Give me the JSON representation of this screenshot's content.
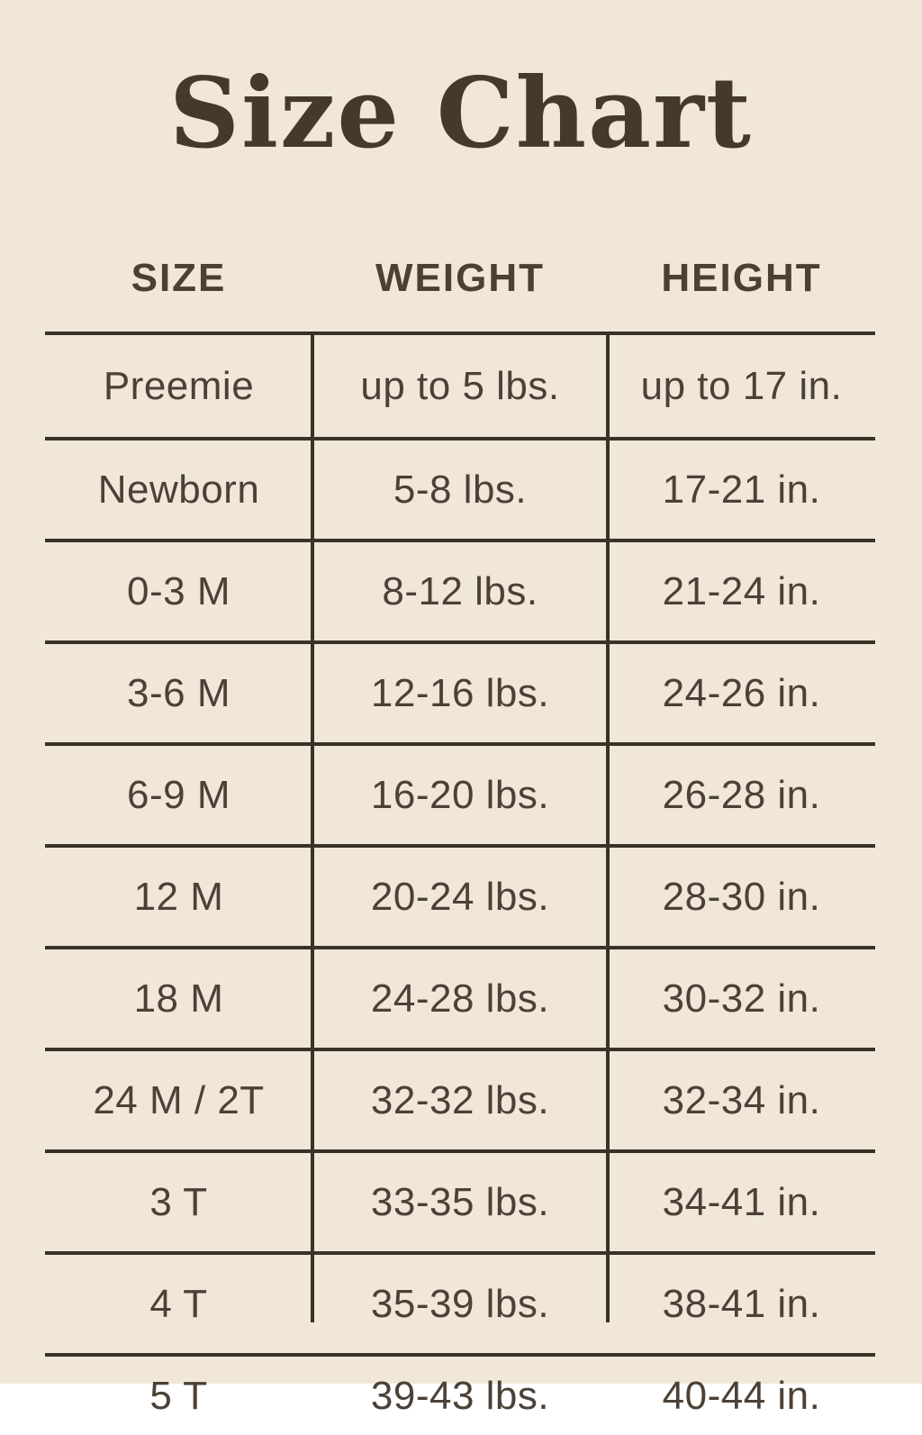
{
  "title": "Size Chart",
  "colors": {
    "background": "#f0e7d9",
    "title_text": "#46392a",
    "header_text": "#4b4033",
    "body_text": "#4c4136",
    "grid_line": "#3a3127"
  },
  "chart_data": {
    "type": "table",
    "title": "Size Chart",
    "columns": [
      "SIZE",
      "WEIGHT",
      "HEIGHT"
    ],
    "rows": [
      [
        "Preemie",
        "up to 5 lbs.",
        "up to 17 in."
      ],
      [
        "Newborn",
        "5-8 lbs.",
        "17-21 in."
      ],
      [
        "0-3 M",
        "8-12 lbs.",
        "21-24 in."
      ],
      [
        "3-6 M",
        "12-16 lbs.",
        "24-26 in."
      ],
      [
        "6-9 M",
        "16-20 lbs.",
        "26-28 in."
      ],
      [
        "12 M",
        "20-24 lbs.",
        "28-30 in."
      ],
      [
        "18 M",
        "24-28 lbs.",
        "30-32 in."
      ],
      [
        "24 M / 2T",
        "32-32 lbs.",
        "32-34 in."
      ],
      [
        "3 T",
        "33-35 lbs.",
        "34-41 in."
      ],
      [
        "4 T",
        "35-39 lbs.",
        "38-41 in."
      ],
      [
        "5 T",
        "39-43 lbs.",
        "40-44 in."
      ]
    ],
    "layout": {
      "grid": "horizontal rules between rows, no outer border, two interior column dividers extending below last row",
      "legend_position": "none"
    }
  }
}
